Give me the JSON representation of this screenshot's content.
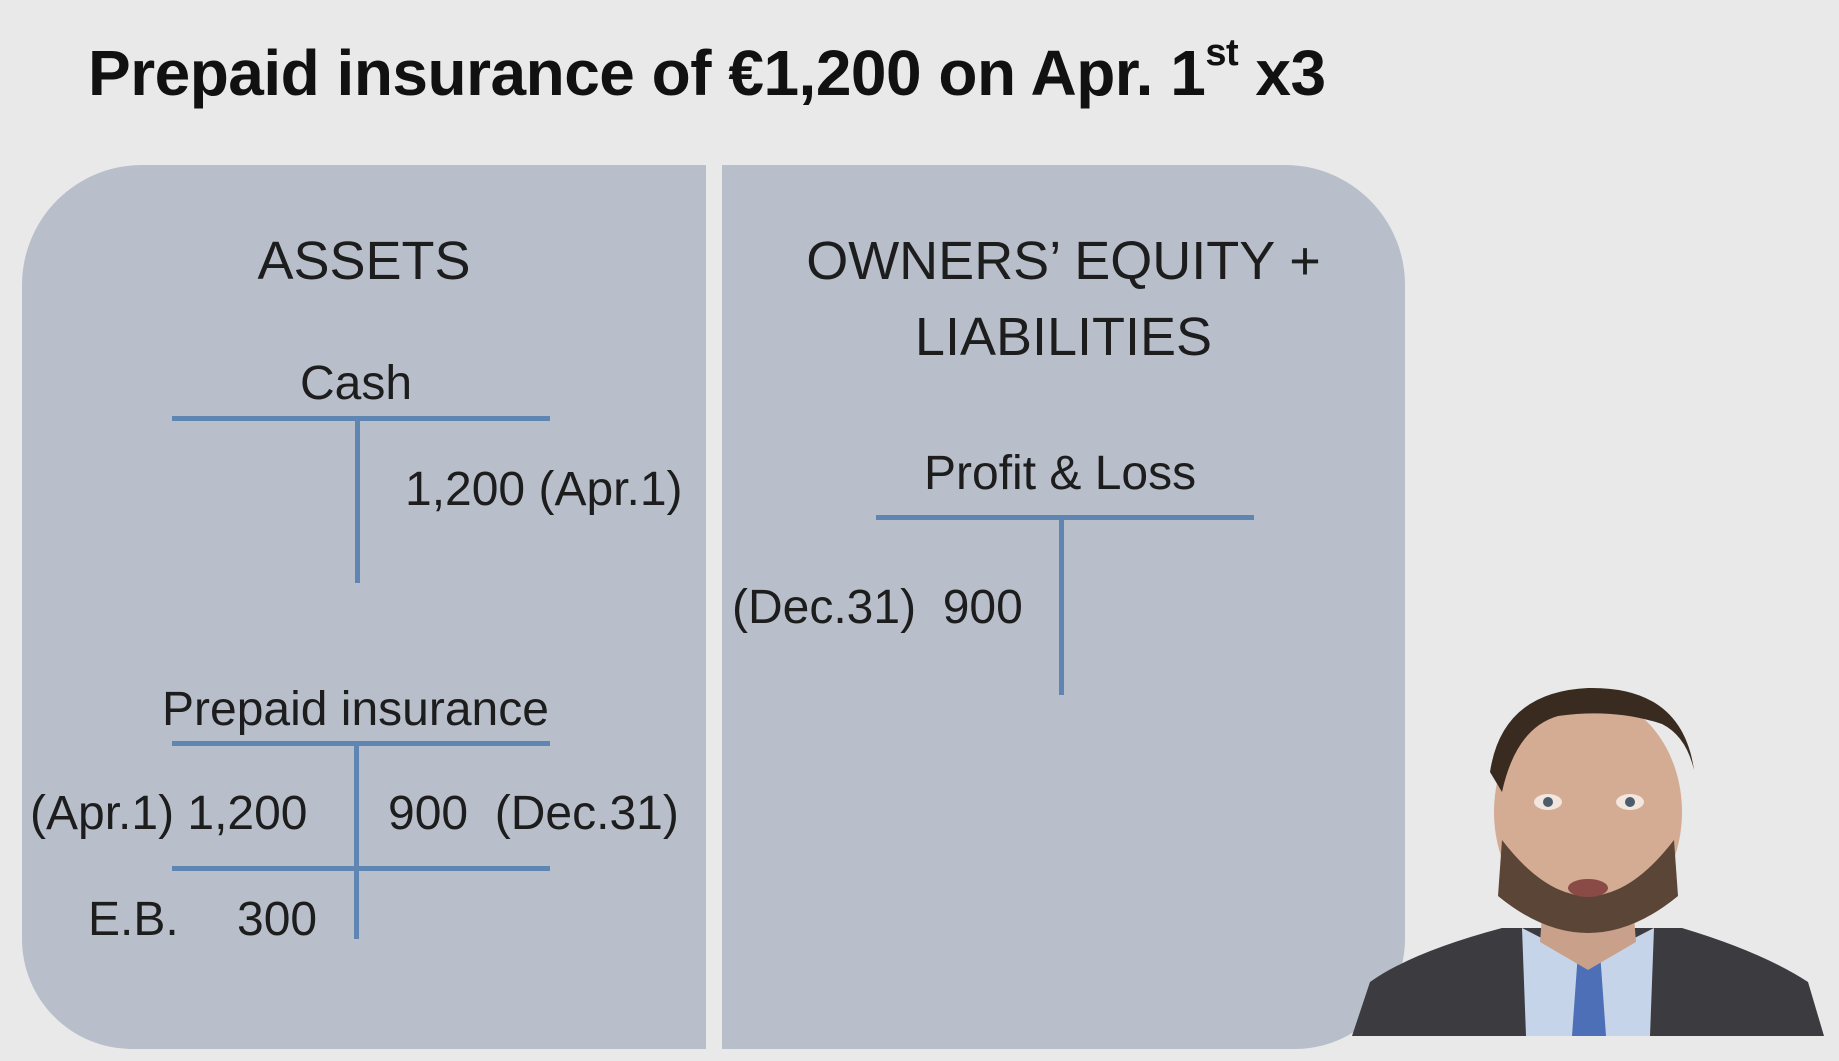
{
  "title": {
    "main": "Prepaid insurance of €1,200 on Apr. 1",
    "superscript": "st",
    "suffix": " x3"
  },
  "assets": {
    "heading": "ASSETS",
    "cash": {
      "name": "Cash",
      "credit": "1,200 (Apr.1)"
    },
    "prepaid": {
      "name": "Prepaid insurance",
      "debit": "(Apr.1) 1,200",
      "credit": "900  (Dec.31)",
      "eb_label": "E.B.",
      "eb_value": "300"
    }
  },
  "equity": {
    "heading_line1": "OWNERS’ EQUITY +",
    "heading_line2": "LIABILITIES",
    "pnl": {
      "name": "Profit & Loss",
      "debit": "(Dec.31)  900"
    }
  },
  "colors": {
    "background": "#e9e9e9",
    "panel": "#b8bfcb",
    "t_account_line": "#5f86b3"
  },
  "presenter": {
    "icon": "presenter-video-icon"
  }
}
